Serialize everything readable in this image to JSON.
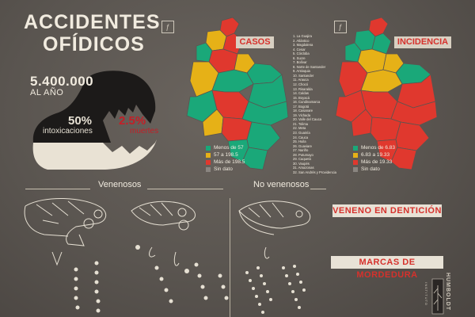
{
  "header": {
    "title_line1": "ACCIDENTES",
    "title_line2": "OFÍDICOS"
  },
  "stats": {
    "total": "5.400.000",
    "total_label": "AL AÑO",
    "intox_pct": "50%",
    "intox_label": "intoxicaciones",
    "death_pct": "2.5%",
    "death_label": "muertes"
  },
  "map_casos": {
    "title": "CASOS",
    "legend": [
      {
        "label": "Menos de 57",
        "color": "#1aa879"
      },
      {
        "label": "57 a 198.5",
        "color": "#e6b117"
      },
      {
        "label": "Más de 198.5",
        "color": "#e0382e"
      },
      {
        "label": "Sin dato",
        "color": "#8a8580"
      }
    ]
  },
  "map_incidencia": {
    "title": "INCIDENCIA",
    "legend": [
      {
        "label": "Menos de 6.83",
        "color": "#1aa879"
      },
      {
        "label": "6.83 a 19.33",
        "color": "#e6b117"
      },
      {
        "label": "Más de 19.33",
        "color": "#e0382e"
      },
      {
        "label": "Sin dato",
        "color": "#8a8580"
      }
    ]
  },
  "departments": [
    "1. La Guajira",
    "2. Atlántico",
    "3. Magdalena",
    "4. Cesar",
    "5. Córdoba",
    "6. Sucre",
    "7. Bolívar",
    "8. Norte de Santander",
    "9. Antioquia",
    "10. Santander",
    "11. Arauca",
    "12. Chocó",
    "13. Risaralda",
    "14. Caldas",
    "15. Boyacá",
    "16. Cundinamarca",
    "17. Bogotá",
    "18. Casanare",
    "19. Vichada",
    "20. Valle del Cauca",
    "21. Tolima",
    "22. Meta",
    "23. Guainía",
    "24. Cauca",
    "25. Huila",
    "26. Guaviare",
    "27. Nariño",
    "28. Putumayo",
    "29. Caquetá",
    "30. Vaupés",
    "31. Amazonas",
    "32. San Andrés y Providencia"
  ],
  "sections": {
    "venomous": "Venenosos",
    "non_venomous": "No venenosos",
    "venom_banner": "VENENO EN DENTICIÓN",
    "bite_banner": "MARCAS DE MORDEDURA"
  },
  "logo": {
    "text": "HUMBOLDT",
    "text_small": "INSTITUTO"
  },
  "icons": {
    "map_icon": "fingerprint-icon"
  }
}
